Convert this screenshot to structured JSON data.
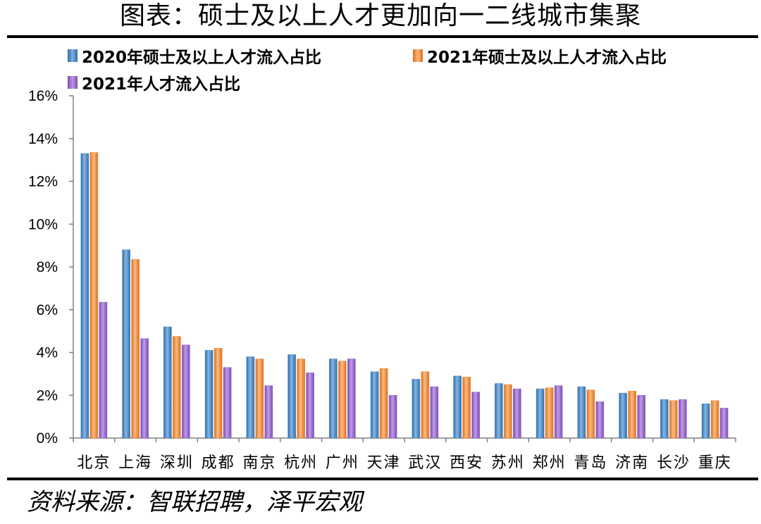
{
  "page": {
    "title": "图表：硕士及以上人才更加向一二线城市集聚",
    "source": "资料来源：智联招聘，泽平宏观"
  },
  "chart_data": {
    "type": "bar",
    "categories": [
      "北京",
      "上海",
      "深圳",
      "成都",
      "南京",
      "杭州",
      "广州",
      "天津",
      "武汉",
      "西安",
      "苏州",
      "郑州",
      "青岛",
      "济南",
      "长沙",
      "重庆"
    ],
    "series": [
      {
        "name": "2020年硕士及以上人才流入占比",
        "color": "#4a86c0",
        "values": [
          13.3,
          8.8,
          5.2,
          4.1,
          3.8,
          3.9,
          3.7,
          3.1,
          2.75,
          2.9,
          2.55,
          2.3,
          2.4,
          2.1,
          1.8,
          1.6
        ]
      },
      {
        "name": "2021年硕士及以上人才流入占比",
        "color": "#ed8a3f",
        "values": [
          13.35,
          8.35,
          4.75,
          4.2,
          3.7,
          3.7,
          3.6,
          3.25,
          3.1,
          2.85,
          2.5,
          2.35,
          2.25,
          2.2,
          1.75,
          1.75
        ]
      },
      {
        "name": "2021年人才流入占比",
        "color": "#9566c8",
        "values": [
          6.35,
          4.65,
          4.35,
          3.3,
          2.45,
          3.05,
          3.7,
          2.0,
          2.4,
          2.15,
          2.3,
          2.45,
          1.7,
          2.0,
          1.8,
          1.4
        ]
      }
    ],
    "ylim": [
      0,
      16
    ],
    "yticks": [
      "0%",
      "2%",
      "4%",
      "6%",
      "8%",
      "10%",
      "12%",
      "14%",
      "16%"
    ],
    "grid": false,
    "legend_position": "top"
  }
}
